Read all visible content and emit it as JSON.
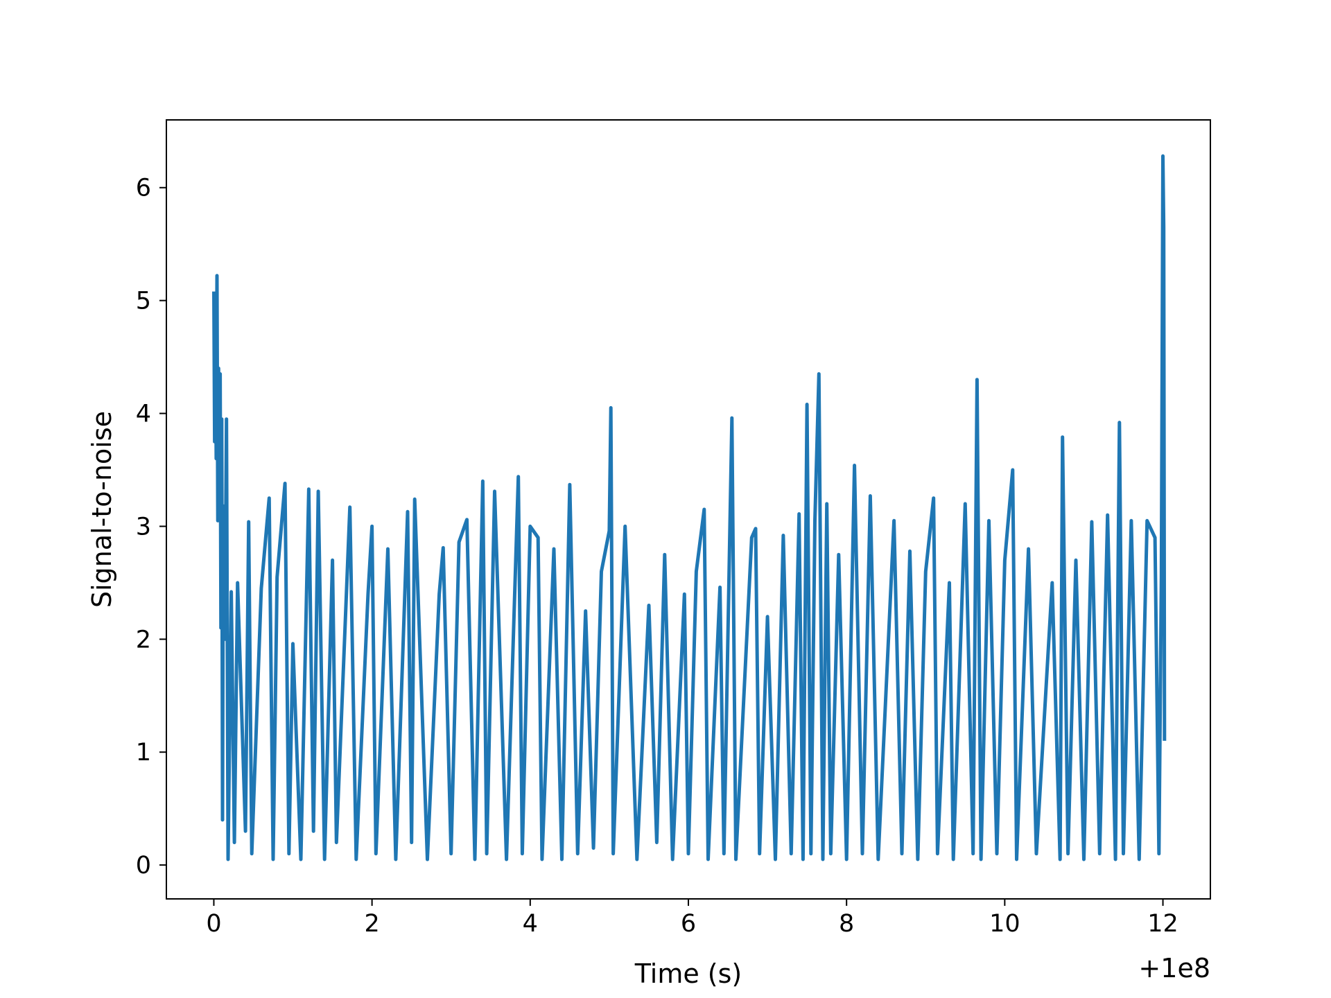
{
  "chart_data": {
    "type": "line",
    "title": "",
    "xlabel": "Time (s)",
    "ylabel": "Signal-to-noise",
    "x_offset_label": "+1e8",
    "xlim": [
      -0.6,
      12.6
    ],
    "ylim": [
      -0.3,
      6.6
    ],
    "grid": false,
    "legend": "none",
    "line_color": "#1f77b4",
    "x_ticks": [
      0,
      2,
      4,
      6,
      8,
      10,
      12
    ],
    "x_tick_labels": [
      "0",
      "2",
      "4",
      "6",
      "8",
      "10",
      "12"
    ],
    "y_ticks": [
      0,
      1,
      2,
      3,
      4,
      5,
      6
    ],
    "y_tick_labels": [
      "0",
      "1",
      "2",
      "3",
      "4",
      "5",
      "6"
    ],
    "series": [
      {
        "points": [
          [
            0.0,
            5.08
          ],
          [
            0.01,
            3.75
          ],
          [
            0.02,
            4.8
          ],
          [
            0.03,
            3.6
          ],
          [
            0.04,
            5.22
          ],
          [
            0.05,
            3.05
          ],
          [
            0.06,
            4.4
          ],
          [
            0.07,
            3.2
          ],
          [
            0.08,
            4.35
          ],
          [
            0.09,
            2.1
          ],
          [
            0.1,
            3.95
          ],
          [
            0.11,
            0.4
          ],
          [
            0.12,
            3.18
          ],
          [
            0.14,
            2.0
          ],
          [
            0.16,
            3.95
          ],
          [
            0.18,
            0.05
          ],
          [
            0.22,
            2.42
          ],
          [
            0.26,
            0.2
          ],
          [
            0.3,
            2.5
          ],
          [
            0.4,
            0.3
          ],
          [
            0.44,
            3.04
          ],
          [
            0.48,
            0.1
          ],
          [
            0.6,
            2.45
          ],
          [
            0.7,
            3.25
          ],
          [
            0.75,
            0.05
          ],
          [
            0.8,
            2.55
          ],
          [
            0.9,
            3.38
          ],
          [
            0.95,
            0.1
          ],
          [
            1.0,
            1.96
          ],
          [
            1.1,
            0.05
          ],
          [
            1.2,
            3.33
          ],
          [
            1.26,
            0.3
          ],
          [
            1.32,
            3.31
          ],
          [
            1.4,
            0.05
          ],
          [
            1.5,
            2.7
          ],
          [
            1.55,
            0.2
          ],
          [
            1.72,
            3.17
          ],
          [
            1.8,
            0.05
          ],
          [
            1.95,
            2.4
          ],
          [
            2.0,
            3.0
          ],
          [
            2.05,
            0.1
          ],
          [
            2.2,
            2.8
          ],
          [
            2.3,
            0.05
          ],
          [
            2.45,
            3.13
          ],
          [
            2.5,
            0.2
          ],
          [
            2.54,
            3.24
          ],
          [
            2.7,
            0.05
          ],
          [
            2.85,
            2.4
          ],
          [
            2.9,
            2.81
          ],
          [
            3.0,
            0.1
          ],
          [
            3.1,
            2.86
          ],
          [
            3.2,
            3.06
          ],
          [
            3.3,
            0.05
          ],
          [
            3.4,
            3.4
          ],
          [
            3.45,
            0.1
          ],
          [
            3.55,
            3.31
          ],
          [
            3.7,
            0.05
          ],
          [
            3.85,
            3.44
          ],
          [
            3.9,
            0.1
          ],
          [
            4.0,
            3.0
          ],
          [
            4.1,
            2.9
          ],
          [
            4.15,
            0.05
          ],
          [
            4.3,
            2.8
          ],
          [
            4.4,
            0.05
          ],
          [
            4.5,
            3.37
          ],
          [
            4.6,
            0.1
          ],
          [
            4.7,
            2.25
          ],
          [
            4.8,
            0.15
          ],
          [
            4.9,
            2.6
          ],
          [
            5.0,
            2.96
          ],
          [
            5.02,
            4.05
          ],
          [
            5.05,
            0.1
          ],
          [
            5.2,
            3.0
          ],
          [
            5.35,
            0.05
          ],
          [
            5.5,
            2.3
          ],
          [
            5.6,
            0.2
          ],
          [
            5.7,
            2.75
          ],
          [
            5.8,
            0.05
          ],
          [
            5.95,
            2.4
          ],
          [
            6.0,
            0.1
          ],
          [
            6.1,
            2.6
          ],
          [
            6.2,
            3.15
          ],
          [
            6.25,
            0.05
          ],
          [
            6.4,
            2.46
          ],
          [
            6.45,
            0.1
          ],
          [
            6.55,
            3.96
          ],
          [
            6.6,
            0.05
          ],
          [
            6.8,
            2.9
          ],
          [
            6.85,
            2.98
          ],
          [
            6.9,
            0.1
          ],
          [
            7.0,
            2.2
          ],
          [
            7.1,
            0.05
          ],
          [
            7.2,
            2.92
          ],
          [
            7.3,
            0.1
          ],
          [
            7.4,
            3.11
          ],
          [
            7.45,
            0.05
          ],
          [
            7.5,
            4.08
          ],
          [
            7.55,
            0.1
          ],
          [
            7.6,
            3.05
          ],
          [
            7.65,
            4.35
          ],
          [
            7.7,
            0.05
          ],
          [
            7.75,
            3.2
          ],
          [
            7.8,
            0.1
          ],
          [
            7.9,
            2.75
          ],
          [
            8.0,
            0.05
          ],
          [
            8.1,
            3.54
          ],
          [
            8.2,
            0.1
          ],
          [
            8.3,
            3.27
          ],
          [
            8.4,
            0.05
          ],
          [
            8.6,
            3.05
          ],
          [
            8.7,
            0.1
          ],
          [
            8.8,
            2.78
          ],
          [
            8.9,
            0.05
          ],
          [
            9.0,
            2.6
          ],
          [
            9.1,
            3.25
          ],
          [
            9.15,
            0.1
          ],
          [
            9.3,
            2.5
          ],
          [
            9.35,
            0.05
          ],
          [
            9.5,
            3.2
          ],
          [
            9.6,
            0.1
          ],
          [
            9.65,
            4.3
          ],
          [
            9.7,
            0.05
          ],
          [
            9.8,
            3.05
          ],
          [
            9.9,
            0.1
          ],
          [
            10.0,
            2.7
          ],
          [
            10.1,
            3.5
          ],
          [
            10.15,
            0.05
          ],
          [
            10.3,
            2.8
          ],
          [
            10.4,
            0.1
          ],
          [
            10.6,
            2.5
          ],
          [
            10.7,
            0.05
          ],
          [
            10.73,
            3.79
          ],
          [
            10.8,
            0.1
          ],
          [
            10.9,
            2.7
          ],
          [
            11.0,
            0.05
          ],
          [
            11.1,
            3.04
          ],
          [
            11.2,
            0.1
          ],
          [
            11.3,
            3.1
          ],
          [
            11.4,
            0.05
          ],
          [
            11.45,
            3.92
          ],
          [
            11.5,
            0.1
          ],
          [
            11.6,
            3.05
          ],
          [
            11.7,
            0.05
          ],
          [
            11.8,
            3.05
          ],
          [
            11.9,
            2.9
          ],
          [
            11.95,
            0.1
          ],
          [
            11.98,
            2.55
          ],
          [
            12.0,
            6.28
          ],
          [
            12.01,
            5.65
          ],
          [
            12.02,
            1.1
          ]
        ]
      }
    ]
  }
}
